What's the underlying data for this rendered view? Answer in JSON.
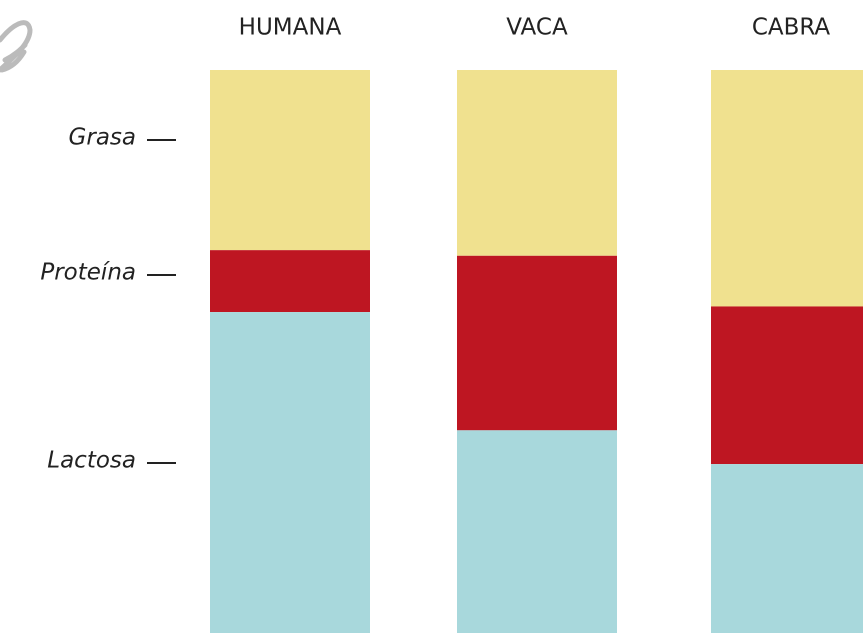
{
  "chart_data": {
    "type": "stacked-bar",
    "categories": [
      "HUMANA",
      "VACA",
      "CABRA"
    ],
    "series": [
      {
        "name": "Grasa",
        "color": "#f0e18f",
        "values": [
          32,
          33,
          42
        ]
      },
      {
        "name": "Proteína",
        "color": "#be1622",
        "values": [
          11,
          31,
          28
        ]
      },
      {
        "name": "Lactosa",
        "color": "#a8d8dc",
        "values": [
          57,
          36,
          30
        ]
      }
    ]
  }
}
